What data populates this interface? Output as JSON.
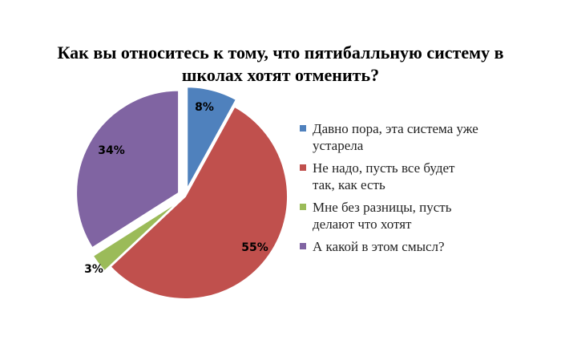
{
  "chart_data": {
    "type": "pie",
    "title_lines": [
      "Как вы относитесь к тому, что пятибалльную систему в",
      "школах хотят отменить?"
    ],
    "slices": [
      {
        "label_lines": [
          "Давно пора, эта система уже",
          "устарела"
        ],
        "value": 8,
        "value_label": "8%",
        "color": "#4F81BD"
      },
      {
        "label_lines": [
          "Не надо, пусть все будет",
          "так, как есть"
        ],
        "value": 55,
        "value_label": "55%",
        "color": "#C0504D"
      },
      {
        "label_lines": [
          "Мне без разницы, пусть",
          "делают что хотят"
        ],
        "value": 3,
        "value_label": "3%",
        "color": "#9BBB59"
      },
      {
        "label_lines": [
          "А какой в этом смысл?"
        ],
        "value": 34,
        "value_label": "34%",
        "color": "#8064A2"
      }
    ],
    "start_angle_deg": 0,
    "direction": "clockwise",
    "exploded": true,
    "legend_position": "right"
  }
}
